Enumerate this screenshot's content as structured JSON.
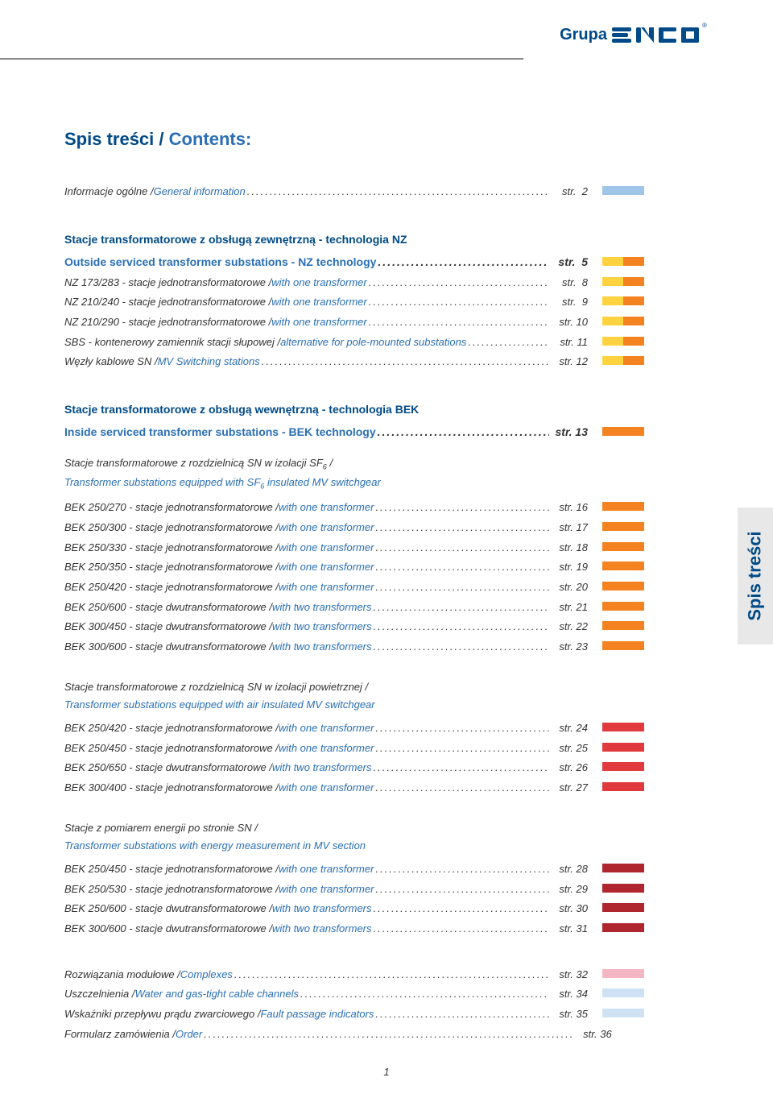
{
  "logo": {
    "group": "Grupa",
    "brand": "ENCO",
    "reg": "®",
    "logo_color": "#004a87"
  },
  "title": {
    "pl": "Spis treści / ",
    "en": "Contents:"
  },
  "side_tab": "Spis treści",
  "page_number": "1",
  "colors": {
    "dark_blue": "#004a87",
    "light_blue": "#2a6fb5",
    "text": "#333333",
    "italic_blue": "#2a6fb5"
  },
  "swatch_palette": {
    "yellow": "#ffd23f",
    "orange": "#f58220",
    "red": "#e03a3e",
    "dk_red": "#b0262e",
    "lt_blue": "#9fc5e8",
    "md_blue": "#6fa8dc",
    "pink": "#f4b6c2",
    "lt_pink": "#f9d2db",
    "vlt_blue": "#cfe2f3"
  },
  "pageref_prefix": "str.",
  "sections": [
    {
      "lines": [
        {
          "pl": "Informacje ogólne / ",
          "en": "General information",
          "page": "2",
          "sw": [
            "#9fc5e8",
            "#9fc5e8"
          ]
        }
      ]
    },
    {
      "header": {
        "pl": "Stacje transformatorowe z obsługą zewnętrzną - technologia NZ",
        "en": "Outside serviced transformer substations - NZ technology",
        "page": "5",
        "sw": [
          "#ffd23f",
          "#f58220"
        ]
      },
      "lines": [
        {
          "pl": "NZ 173/283 - stacje jednotransformatorowe / ",
          "en": "with one transformer",
          "page": "8",
          "sw": [
            "#ffd23f",
            "#f58220"
          ]
        },
        {
          "pl": "NZ 210/240 - stacje jednotransformatorowe / ",
          "en": "with one transformer",
          "page": "9",
          "sw": [
            "#ffd23f",
            "#f58220"
          ]
        },
        {
          "pl": "NZ 210/290 - stacje jednotransformatorowe / ",
          "en": "with one transformer",
          "page": "10",
          "sw": [
            "#ffd23f",
            "#f58220"
          ]
        },
        {
          "pl": "SBS - kontenerowy zamiennik stacji słupowej / ",
          "en": "alternative for pole-mounted substations",
          "page": "11",
          "sw": [
            "#ffd23f",
            "#f58220"
          ]
        },
        {
          "pl": "Węzły kablowe SN / ",
          "en": "MV Switching stations",
          "page": "12",
          "sw": [
            "#ffd23f",
            "#f58220"
          ]
        }
      ]
    },
    {
      "header": {
        "pl": "Stacje transformatorowe z obsługą wewnętrzną - technologia BEK",
        "en": "Inside serviced transformer substations - BEK technology",
        "page": "13",
        "sw": [
          "#f58220",
          "#f58220"
        ]
      },
      "sub": {
        "pl": "Stacje transformatorowe z rozdzielnicą SN w izolacji SF<sub>6</sub> /",
        "en": "Transformer substations equipped with SF<sub>6</sub> insulated MV switchgear"
      },
      "lines": [
        {
          "pl": "BEK 250/270 - stacje jednotransformatorowe / ",
          "en": "with one transformer",
          "page": "16",
          "sw": [
            "#f58220",
            "#f58220"
          ]
        },
        {
          "pl": "BEK 250/300 - stacje jednotransformatorowe / ",
          "en": "with one transformer",
          "page": "17",
          "sw": [
            "#f58220",
            "#f58220"
          ]
        },
        {
          "pl": "BEK 250/330 - stacje jednotransformatorowe / ",
          "en": "with one transformer",
          "page": "18",
          "sw": [
            "#f58220",
            "#f58220"
          ]
        },
        {
          "pl": "BEK 250/350 - stacje jednotransformatorowe / ",
          "en": "with one transformer",
          "page": "19",
          "sw": [
            "#f58220",
            "#f58220"
          ]
        },
        {
          "pl": "BEK 250/420 - stacje jednotransformatorowe / ",
          "en": "with one transformer",
          "page": "20",
          "sw": [
            "#f58220",
            "#f58220"
          ]
        },
        {
          "pl": "BEK 250/600 - stacje dwutransformatorowe / ",
          "en": "with two transformers",
          "page": "21",
          "sw": [
            "#f58220",
            "#f58220"
          ]
        },
        {
          "pl": "BEK 300/450 - stacje dwutransformatorowe / ",
          "en": "with two transformers",
          "page": "22",
          "sw": [
            "#f58220",
            "#f58220"
          ]
        },
        {
          "pl": "BEK 300/600 - stacje dwutransformatorowe / ",
          "en": "with two transformers",
          "page": "23",
          "sw": [
            "#f58220",
            "#f58220"
          ]
        }
      ]
    },
    {
      "sub": {
        "pl": "Stacje transformatorowe z rozdzielnicą SN w izolacji powietrznej /",
        "en": "Transformer substations equipped with air insulated MV switchgear"
      },
      "lines": [
        {
          "pl": "BEK 250/420 - stacje jednotransformatorowe / ",
          "en": "with one transformer",
          "page": "24",
          "sw": [
            "#e03a3e",
            "#e03a3e"
          ]
        },
        {
          "pl": "BEK 250/450 - stacje jednotransformatorowe / ",
          "en": "with one transformer",
          "page": "25",
          "sw": [
            "#e03a3e",
            "#e03a3e"
          ]
        },
        {
          "pl": "BEK 250/650 - stacje dwutransformatorowe / ",
          "en": "with two transformers",
          "page": "26",
          "sw": [
            "#e03a3e",
            "#e03a3e"
          ]
        },
        {
          "pl": "BEK 300/400 - stacje jednotransformatorowe / ",
          "en": "with one transformer",
          "page": "27",
          "sw": [
            "#e03a3e",
            "#e03a3e"
          ]
        }
      ]
    },
    {
      "sub": {
        "pl": "Stacje z pomiarem energii po stronie SN /",
        "en": "Transformer substations with energy measurement in MV section"
      },
      "lines": [
        {
          "pl": "BEK 250/450 - stacje jednotransformatorowe / ",
          "en": "with one transformer",
          "page": "28",
          "sw": [
            "#b0262e",
            "#b0262e"
          ]
        },
        {
          "pl": "BEK 250/530 - stacje jednotransformatorowe / ",
          "en": "with one transformer",
          "page": "29",
          "sw": [
            "#b0262e",
            "#b0262e"
          ]
        },
        {
          "pl": "BEK 250/600 - stacje dwutransformatorowe / ",
          "en": "with two transformers",
          "page": "30",
          "sw": [
            "#b0262e",
            "#b0262e"
          ]
        },
        {
          "pl": "BEK 300/600 - stacje dwutransformatorowe / ",
          "en": "with two transformers",
          "page": "31",
          "sw": [
            "#b0262e",
            "#b0262e"
          ]
        }
      ]
    },
    {
      "lines": [
        {
          "pl": "Rozwiązania modułowe / ",
          "en": "Complexes",
          "page": "32",
          "sw": [
            "#f4b6c2",
            "#f4b6c2"
          ]
        },
        {
          "pl": "Uszczelnienia / ",
          "en": "Water and gas-tight cable channels",
          "page": "34",
          "sw": [
            "#cfe2f3",
            "#cfe2f3"
          ]
        },
        {
          "pl": "Wskaźniki przepływu prądu zwarciowego / ",
          "en": "Fault passage indicators",
          "page": "35",
          "sw": [
            "#cfe2f3",
            "#cfe2f3"
          ]
        },
        {
          "pl": "Formularz zamówienia / ",
          "en": "Order",
          "page": "36",
          "sw": []
        }
      ]
    }
  ]
}
